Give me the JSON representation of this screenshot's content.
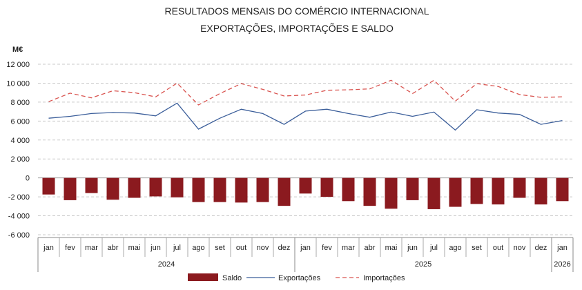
{
  "chart_data": {
    "type": "bar",
    "title": "RESULTADOS MENSAIS DO COMÉRCIO INTERNACIONAL",
    "subtitle": "EXPORTAÇÕES, IMPORTAÇÕES E SALDO",
    "unit_label": "M€",
    "ylim": [
      -6000,
      12000
    ],
    "yticks": [
      12000,
      10000,
      8000,
      6000,
      4000,
      2000,
      0,
      -2000,
      -4000,
      -6000
    ],
    "ytick_labels": [
      "12 000",
      "10 000",
      "8 000",
      "6 000",
      "4 000",
      "2 000",
      "0",
      "-2 000",
      "-4 000",
      "-6 000"
    ],
    "grid": true,
    "legend_position": "bottom",
    "categories": [
      "jan",
      "fev",
      "mar",
      "abr",
      "mai",
      "jun",
      "jul",
      "ago",
      "set",
      "out",
      "nov",
      "dez",
      "jan",
      "fev",
      "mar",
      "abr",
      "mai",
      "jun",
      "jul",
      "ago",
      "set",
      "out",
      "nov",
      "dez",
      "jan"
    ],
    "year_groups": [
      {
        "label": "2024",
        "count": 12
      },
      {
        "label": "2025",
        "count": 12
      },
      {
        "label": "2026",
        "count": 1
      }
    ],
    "series": [
      {
        "name": "Saldo",
        "kind": "bar",
        "color": "#8B1A1F",
        "values": [
          -1750,
          -2350,
          -1600,
          -2300,
          -2100,
          -1950,
          -2050,
          -2550,
          -2550,
          -2600,
          -2550,
          -2950,
          -1650,
          -2000,
          -2450,
          -2950,
          -3250,
          -2350,
          -3300,
          -3050,
          -2750,
          -2800,
          -2100,
          -2800,
          -2450
        ]
      },
      {
        "name": "Exportações",
        "kind": "line",
        "color": "#3B5E9A",
        "values": [
          6300,
          6500,
          6800,
          6900,
          6850,
          6550,
          7900,
          5150,
          6300,
          7250,
          6800,
          5650,
          7050,
          7250,
          6800,
          6400,
          6950,
          6500,
          6950,
          5050,
          7200,
          6850,
          6700,
          5650,
          6050
        ]
      },
      {
        "name": "Importações",
        "kind": "line-dashed",
        "color": "#D9534F",
        "values": [
          8050,
          8950,
          8450,
          9200,
          9000,
          8550,
          10000,
          7700,
          8900,
          9950,
          9350,
          8650,
          8750,
          9250,
          9300,
          9400,
          10300,
          8900,
          10300,
          8100,
          9950,
          9650,
          8800,
          8500,
          8550
        ]
      }
    ]
  }
}
